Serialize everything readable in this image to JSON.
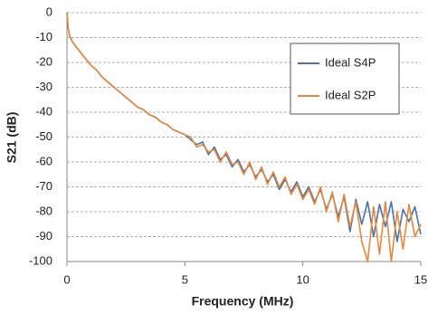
{
  "chart_data": {
    "type": "line",
    "xlabel": "Frequency (MHz)",
    "ylabel": "S21 (dB)",
    "x": [
      0,
      0.05,
      0.1,
      0.25,
      0.5,
      0.75,
      1,
      1.25,
      1.5,
      1.75,
      2,
      2.25,
      2.5,
      2.75,
      3,
      3.25,
      3.5,
      3.75,
      4,
      4.25,
      4.5,
      4.75,
      5,
      5.25,
      5.5,
      5.75,
      6,
      6.25,
      6.5,
      6.75,
      7,
      7.25,
      7.5,
      7.75,
      8,
      8.25,
      8.5,
      8.75,
      9,
      9.25,
      9.5,
      9.75,
      10,
      10.25,
      10.5,
      10.75,
      11,
      11.25,
      11.5,
      11.75,
      12,
      12.25,
      12.5,
      12.75,
      13,
      13.25,
      13.5,
      13.75,
      14,
      14.25,
      14.5,
      14.75,
      15
    ],
    "series": [
      {
        "name": "Ideal S4P",
        "color": "#4a72b0",
        "values": [
          0,
          -6,
          -9,
          -12,
          -15,
          -18,
          -21,
          -23,
          -26,
          -28,
          -30,
          -32,
          -34,
          -36,
          -38,
          -39,
          -41,
          -42,
          -44,
          -45,
          -47,
          -48,
          -49,
          -51,
          -53,
          -52,
          -57,
          -54,
          -59,
          -57,
          -62,
          -59,
          -64,
          -61,
          -66,
          -63,
          -68,
          -65,
          -71,
          -67,
          -72,
          -68,
          -74,
          -70,
          -76,
          -71,
          -79,
          -73,
          -82,
          -74,
          -88,
          -75,
          -85,
          -76,
          -90,
          -77,
          -86,
          -76,
          -92,
          -79,
          -84,
          -78,
          -89
        ]
      },
      {
        "name": "Ideal S2P",
        "color": "#e8883a",
        "values": [
          0,
          -6,
          -9,
          -12,
          -15,
          -18,
          -21,
          -23,
          -26,
          -28,
          -30,
          -32,
          -34,
          -36,
          -38,
          -39,
          -41,
          -42,
          -44,
          -45,
          -47,
          -48,
          -49,
          -50,
          -54,
          -53,
          -56,
          -55,
          -60,
          -56,
          -61,
          -60,
          -65,
          -60,
          -67,
          -62,
          -69,
          -64,
          -70,
          -66,
          -73,
          -69,
          -75,
          -71,
          -77,
          -70,
          -80,
          -72,
          -84,
          -73,
          -86,
          -76,
          -92,
          -100,
          -78,
          -97,
          -76,
          -100,
          -80,
          -95,
          -77,
          -90,
          -85
        ]
      }
    ],
    "xlim": [
      0,
      15
    ],
    "xticks": [
      0,
      5,
      10,
      15
    ],
    "ylim": [
      -100,
      0
    ],
    "yticks": [
      0,
      -10,
      -20,
      -30,
      -40,
      -50,
      -60,
      -70,
      -80,
      -90,
      -100
    ],
    "grid": true,
    "legend": "upper right"
  }
}
